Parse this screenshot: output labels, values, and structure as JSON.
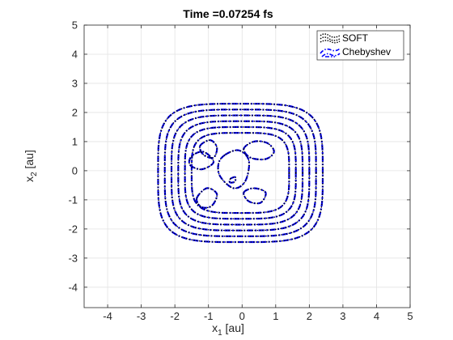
{
  "chart_data": {
    "type": "contour",
    "title": "Time =0.07254 fs",
    "xlabel": "x",
    "xlabel_sub": "1",
    "xlabel_unit": " [au]",
    "ylabel": "x",
    "ylabel_sub": "2",
    "ylabel_unit": " [au]",
    "xlim": [
      -4.7,
      5
    ],
    "ylim": [
      -4.7,
      5
    ],
    "xticks": [
      "-4",
      "-3",
      "-2",
      "-1",
      "0",
      "1",
      "2",
      "3",
      "4",
      "5"
    ],
    "yticks": [
      "-4",
      "-3",
      "-2",
      "-1",
      "0",
      "1",
      "2",
      "3",
      "4",
      "5"
    ],
    "grid": true,
    "legend_position": "top-right",
    "series": [
      {
        "name": "SOFT",
        "color": "#000000",
        "style": "dotted"
      },
      {
        "name": "Chebyshev",
        "color": "#0000ff",
        "style": "dash-dot"
      }
    ],
    "outer_contours": [
      {
        "xmin": -2.5,
        "xmax": 2.4,
        "ymin": -2.45,
        "ymax": 2.3
      },
      {
        "xmin": -2.3,
        "xmax": 2.2,
        "ymin": -2.25,
        "ymax": 2.1
      },
      {
        "xmin": -2.1,
        "xmax": 2.0,
        "ymin": -2.05,
        "ymax": 1.9
      },
      {
        "xmin": -1.9,
        "xmax": 1.8,
        "ymin": -1.85,
        "ymax": 1.7
      },
      {
        "xmin": -1.7,
        "xmax": 1.6,
        "ymin": -1.65,
        "ymax": 1.5
      },
      {
        "xmin": -1.5,
        "xmax": 1.4,
        "ymin": -1.45,
        "ymax": 1.3
      }
    ],
    "inner_contours": [
      {
        "points": [
          [
            -1.25,
            0.85
          ],
          [
            -0.95,
            1.05
          ],
          [
            -0.75,
            0.8
          ],
          [
            -0.85,
            0.45
          ],
          [
            -1.15,
            0.55
          ]
        ]
      },
      {
        "points": [
          [
            0.05,
            0.75
          ],
          [
            0.35,
            1.0
          ],
          [
            0.75,
            0.95
          ],
          [
            0.95,
            0.65
          ],
          [
            0.7,
            0.4
          ],
          [
            0.25,
            0.45
          ]
        ]
      },
      {
        "points": [
          [
            -1.35,
            -0.95
          ],
          [
            -1.05,
            -0.6
          ],
          [
            -0.75,
            -0.8
          ],
          [
            -0.9,
            -1.2
          ],
          [
            -1.2,
            -1.25
          ]
        ]
      },
      {
        "points": [
          [
            0.05,
            -0.75
          ],
          [
            0.35,
            -0.6
          ],
          [
            0.7,
            -0.75
          ],
          [
            0.55,
            -1.1
          ],
          [
            0.2,
            -1.05
          ]
        ]
      },
      {
        "points": [
          [
            -0.5,
            0.55
          ],
          [
            -0.1,
            0.7
          ],
          [
            0.2,
            0.35
          ],
          [
            0.1,
            -0.35
          ],
          [
            -0.25,
            -0.6
          ],
          [
            -0.65,
            -0.2
          ],
          [
            -0.7,
            0.25
          ]
        ]
      },
      {
        "points": [
          [
            -1.55,
            0.2
          ],
          [
            -1.2,
            0.05
          ],
          [
            -0.85,
            0.3
          ],
          [
            -1.15,
            0.65
          ],
          [
            -1.5,
            0.5
          ]
        ]
      },
      {
        "points": [
          [
            -0.35,
            -0.28
          ],
          [
            -0.2,
            -0.22
          ],
          [
            -0.22,
            -0.38
          ],
          [
            -0.36,
            -0.4
          ]
        ]
      }
    ]
  }
}
